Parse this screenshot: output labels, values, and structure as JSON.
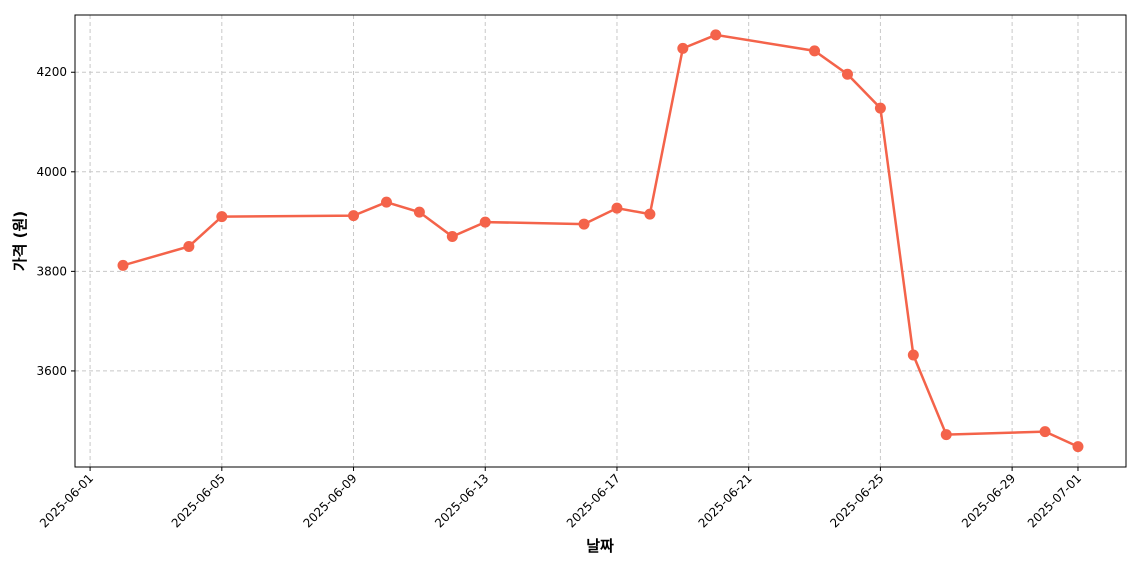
{
  "chart_data": {
    "type": "line",
    "xlabel": "날짜",
    "ylabel": "가격 (원)",
    "x": [
      "2025-06-02",
      "2025-06-04",
      "2025-06-05",
      "2025-06-09",
      "2025-06-10",
      "2025-06-11",
      "2025-06-12",
      "2025-06-13",
      "2025-06-16",
      "2025-06-17",
      "2025-06-18",
      "2025-06-19",
      "2025-06-20",
      "2025-06-23",
      "2025-06-24",
      "2025-06-25",
      "2025-06-26",
      "2025-06-27",
      "2025-06-30",
      "2025-07-01"
    ],
    "series": [
      {
        "color": "#f4634a",
        "values": [
          3812,
          3850,
          3910,
          3912,
          3939,
          3919,
          3870,
          3899,
          3895,
          3927,
          3915,
          4248,
          4275,
          4243,
          4196,
          4128,
          3632,
          3472,
          3478,
          3448
        ]
      }
    ],
    "xlim": [
      "2025-05-31T13:00Z",
      "2025-07-02T11:00Z"
    ],
    "xticks": [
      "2025-06-01",
      "2025-06-05",
      "2025-06-09",
      "2025-06-13",
      "2025-06-17",
      "2025-06-21",
      "2025-06-25",
      "2025-06-29",
      "2025-07-01"
    ],
    "ylim": [
      3407,
      4315
    ],
    "yticks": [
      3600,
      3800,
      4000,
      4200
    ],
    "grid": true
  }
}
